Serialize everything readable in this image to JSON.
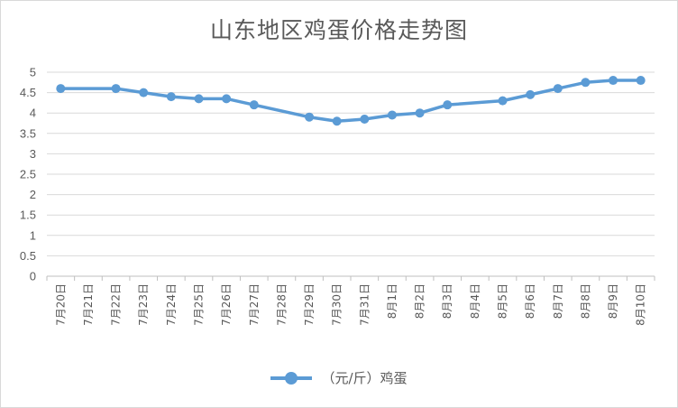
{
  "chart_data": {
    "type": "line",
    "title": "山东地区鸡蛋价格走势图",
    "categories": [
      "7月20日",
      "7月21日",
      "7月22日",
      "7月23日",
      "7月24日",
      "7月25日",
      "7月26日",
      "7月27日",
      "7月28日",
      "7月29日",
      "7月30日",
      "7月31日",
      "8月1日",
      "8月2日",
      "8月3日",
      "8月4日",
      "8月5日",
      "8月6日",
      "8月7日",
      "8月8日",
      "8月9日",
      "8月10日"
    ],
    "series": [
      {
        "name": "（元/斤）鸡蛋",
        "color": "#5b9bd5",
        "values": [
          4.6,
          null,
          4.6,
          4.5,
          4.4,
          4.35,
          4.35,
          4.2,
          null,
          3.9,
          3.8,
          3.85,
          3.95,
          4.0,
          4.2,
          null,
          4.3,
          4.45,
          4.6,
          4.75,
          4.8,
          4.8
        ]
      }
    ],
    "yticks": [
      "0",
      "0.5",
      "1",
      "1.5",
      "2",
      "2.5",
      "3",
      "3.5",
      "4",
      "4.5",
      "5"
    ],
    "ylim": [
      0,
      5
    ],
    "grid": true,
    "legend": "bottom"
  }
}
